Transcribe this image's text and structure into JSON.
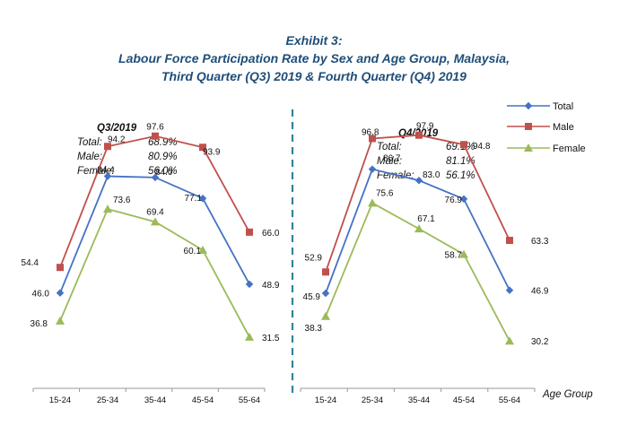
{
  "title": {
    "line1": "Exhibit 3:",
    "line2": "Labour Force Participation Rate by Sex and Age Group, Malaysia,",
    "line3": "Third Quarter (Q3) 2019 & Fourth Quarter (Q4) 2019"
  },
  "xaxis_title": "Age Group",
  "legend": [
    "Total",
    "Male",
    "Female"
  ],
  "colors": {
    "Total": "#4472c4",
    "Male": "#c0504d",
    "Female": "#9bbb59",
    "title": "#1f4e79",
    "divider": "#31849b",
    "axis": "#999999"
  },
  "panels": [
    {
      "heading": "Q3/2019",
      "summary": [
        {
          "label": "Total:",
          "value": "68.9%"
        },
        {
          "label": "Male:",
          "value": "80.9%"
        },
        {
          "label": "Female:",
          "value": "56.0%"
        }
      ]
    },
    {
      "heading": "Q4/2019",
      "summary": [
        {
          "label": "Total:",
          "value": "69.1%"
        },
        {
          "label": "Male:",
          "value": "81.1%"
        },
        {
          "label": "Female:",
          "value": "56.1%"
        }
      ]
    }
  ],
  "chart_data": [
    {
      "type": "line",
      "title": "Q3/2019",
      "categories": [
        "15-24",
        "25-34",
        "35-44",
        "45-54",
        "55-64"
      ],
      "series": [
        {
          "name": "Total",
          "values": [
            46.0,
            84.4,
            84.0,
            77.1,
            48.9
          ]
        },
        {
          "name": "Male",
          "values": [
            54.4,
            94.2,
            97.6,
            93.9,
            66.0
          ]
        },
        {
          "name": "Female",
          "values": [
            36.8,
            73.6,
            69.4,
            60.1,
            31.5
          ]
        }
      ],
      "xlabel": "Age Group",
      "ylabel": "",
      "grid": false,
      "legend": "top-right"
    },
    {
      "type": "line",
      "title": "Q4/2019",
      "categories": [
        "15-24",
        "25-34",
        "35-44",
        "45-54",
        "55-64"
      ],
      "series": [
        {
          "name": "Total",
          "values": [
            45.9,
            86.7,
            83.0,
            76.9,
            46.9
          ]
        },
        {
          "name": "Male",
          "values": [
            52.9,
            96.8,
            97.9,
            94.8,
            63.3
          ]
        },
        {
          "name": "Female",
          "values": [
            38.3,
            75.6,
            67.1,
            58.7,
            30.2
          ]
        }
      ],
      "xlabel": "Age Group",
      "ylabel": "",
      "grid": false,
      "legend": "top-right"
    }
  ]
}
